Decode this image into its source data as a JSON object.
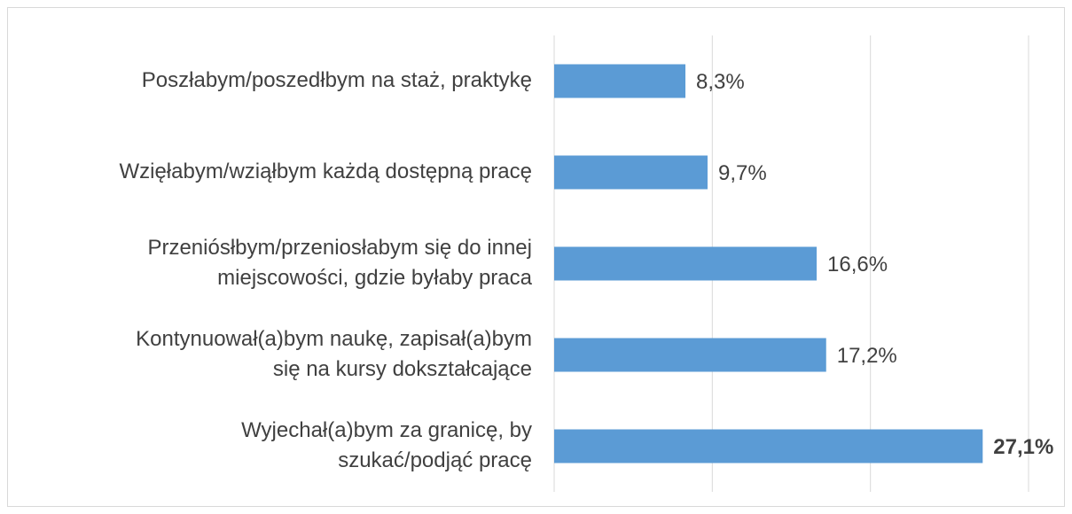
{
  "chart_data": {
    "type": "bar",
    "orientation": "horizontal",
    "categories": [
      [
        "Poszłabym/poszedłbym na staż, praktykę"
      ],
      [
        "Wzięłabym/wziąłbym każdą dostępną pracę"
      ],
      [
        "Przeniósłbym/przeniosłabym się do innej",
        "miejscowości, gdzie byłaby praca"
      ],
      [
        "Kontynuował(a)bym naukę, zapisał(a)bym",
        "się na kursy dokształcające"
      ],
      [
        "Wyjechał(a)bym za granicę, by",
        "szukać/podjąć pracę"
      ]
    ],
    "values": [
      8.3,
      9.7,
      16.6,
      17.2,
      27.1
    ],
    "value_labels": [
      "8,3%",
      "9,7%",
      "16,6%",
      "17,2%",
      "27,1%"
    ],
    "value_label_bold": [
      false,
      false,
      false,
      false,
      true
    ],
    "color": "#5b9bd5",
    "xlim": [
      0,
      30
    ],
    "xticks": [
      0,
      10,
      20,
      30
    ],
    "grid": true
  }
}
